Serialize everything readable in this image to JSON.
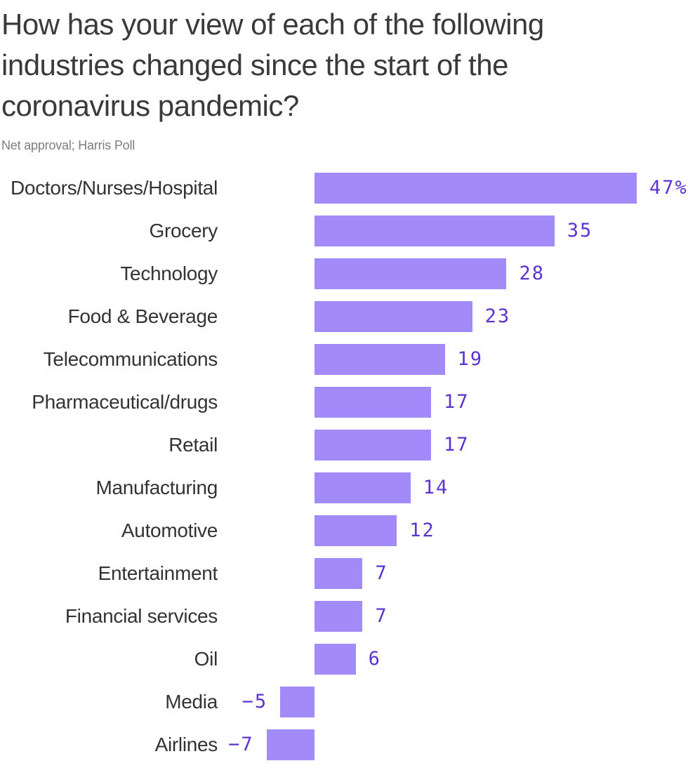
{
  "header": {
    "title": "How has your view of each of the following industries changed since the start of the coronavirus pandemic?",
    "title_lines": [
      "How has your view of each of the following",
      "industries changed since the start of the",
      "coronavirus pandemic?"
    ],
    "subtitle": "Net approval; Harris Poll"
  },
  "chart_data": {
    "type": "bar",
    "orientation": "horizontal",
    "title": "How has your view of each of the following industries changed since the start of the coronavirus pandemic?",
    "subtitle": "Net approval; Harris Poll",
    "categories": [
      "Doctors/Nurses/Hospital",
      "Grocery",
      "Technology",
      "Food & Beverage",
      "Telecommunications",
      "Pharmaceutical/drugs",
      "Retail",
      "Manufacturing",
      "Automotive",
      "Entertainment",
      "Financial services",
      "Oil",
      "Media",
      "Airlines"
    ],
    "values": [
      47,
      35,
      28,
      23,
      19,
      17,
      17,
      14,
      12,
      7,
      7,
      6,
      -5,
      -7
    ],
    "value_labels": [
      "47%",
      "35",
      "28",
      "23",
      "19",
      "17",
      "17",
      "14",
      "12",
      "7",
      "7",
      "6",
      "−5",
      "−7"
    ],
    "xlim": [
      -7,
      47
    ],
    "grid": false,
    "legend": "none",
    "colors": {
      "bar": "#a28af8",
      "value_text": "#5c33d1",
      "category_text": "#333335",
      "title_text": "#3a3a3c",
      "subtitle_text": "#7d7d83",
      "background": "#ffffff"
    }
  }
}
